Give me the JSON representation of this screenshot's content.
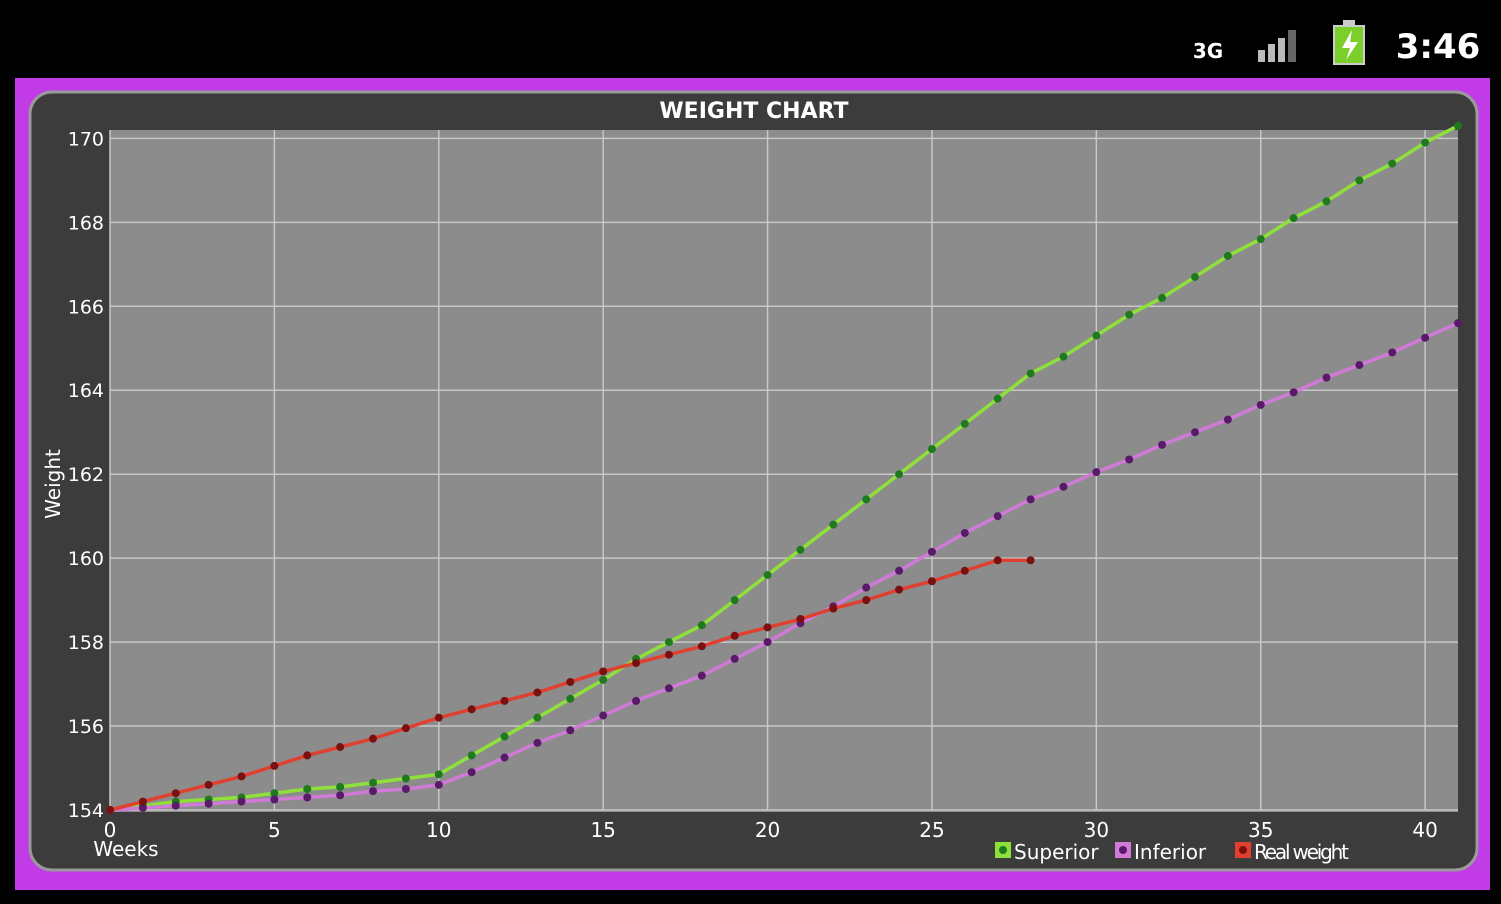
{
  "status_bar": {
    "network": "3G",
    "time": "3:46"
  },
  "chart_data": {
    "type": "line",
    "title": "WEIGHT CHART",
    "x_label": "Weeks",
    "y_label": "Weight",
    "x": [
      0,
      1,
      2,
      3,
      4,
      5,
      6,
      7,
      8,
      9,
      10,
      11,
      12,
      13,
      14,
      15,
      16,
      17,
      18,
      19,
      20,
      21,
      22,
      23,
      24,
      25,
      26,
      27,
      28,
      29,
      30,
      31,
      32,
      33,
      34,
      35,
      36,
      37,
      38,
      39,
      40,
      41
    ],
    "series": [
      {
        "name": "Superior",
        "color": "#8fe03a",
        "marker_color": "#1f7a1f",
        "values": [
          154,
          154.1,
          154.2,
          154.25,
          154.3,
          154.4,
          154.5,
          154.55,
          154.65,
          154.75,
          154.85,
          155.3,
          155.75,
          156.2,
          156.65,
          157.1,
          157.6,
          158.0,
          158.4,
          159.0,
          159.6,
          160.2,
          160.8,
          161.4,
          162.0,
          162.6,
          163.2,
          163.8,
          164.4,
          164.8,
          165.3,
          165.8,
          166.2,
          166.7,
          167.2,
          167.6,
          168.1,
          168.5,
          169.0,
          169.4,
          169.9,
          170.3
        ]
      },
      {
        "name": "Inferior",
        "color": "#d07ad8",
        "marker_color": "#5a1a6a",
        "values": [
          154,
          154.05,
          154.1,
          154.15,
          154.2,
          154.25,
          154.3,
          154.35,
          154.45,
          154.5,
          154.6,
          154.9,
          155.25,
          155.6,
          155.9,
          156.25,
          156.6,
          156.9,
          157.2,
          157.6,
          158.0,
          158.45,
          158.85,
          159.3,
          159.7,
          160.15,
          160.6,
          161.0,
          161.4,
          161.7,
          162.05,
          162.35,
          162.7,
          163.0,
          163.3,
          163.65,
          163.95,
          164.3,
          164.6,
          164.9,
          165.25,
          165.6
        ]
      },
      {
        "name": "Real weight",
        "color": "#e04030",
        "marker_color": "#7a1010",
        "values": [
          154,
          154.2,
          154.4,
          154.6,
          154.8,
          155.05,
          155.3,
          155.5,
          155.7,
          155.95,
          156.2,
          156.4,
          156.6,
          156.8,
          157.05,
          157.3,
          157.5,
          157.7,
          157.9,
          158.15,
          158.35,
          158.55,
          158.8,
          159.0,
          159.25,
          159.45,
          159.7,
          159.95,
          159.95,
          null,
          null,
          null,
          null,
          null,
          null,
          null,
          null,
          null,
          null,
          null,
          null,
          null
        ]
      }
    ],
    "xlim": [
      0,
      41
    ],
    "ylim": [
      154,
      170.2
    ],
    "xticks": [
      0,
      5,
      10,
      15,
      20,
      25,
      30,
      35,
      40
    ],
    "yticks": [
      154,
      156,
      158,
      160,
      162,
      164,
      166,
      168,
      170
    ],
    "grid": true
  }
}
